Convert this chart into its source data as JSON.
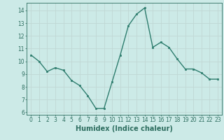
{
  "x": [
    0,
    1,
    2,
    3,
    4,
    5,
    6,
    7,
    8,
    9,
    10,
    11,
    12,
    13,
    14,
    15,
    16,
    17,
    18,
    19,
    20,
    21,
    22,
    23
  ],
  "y": [
    10.5,
    10.0,
    9.2,
    9.5,
    9.3,
    8.5,
    8.1,
    7.3,
    6.3,
    6.3,
    8.4,
    10.5,
    12.8,
    13.7,
    14.2,
    11.1,
    11.5,
    11.1,
    10.2,
    9.4,
    9.4,
    9.1,
    8.6,
    8.6
  ],
  "line_color": "#2e7d6e",
  "marker": "s",
  "markersize": 2.0,
  "linewidth": 1.0,
  "bg_color": "#cceae7",
  "grid_color": "#c0d8d4",
  "xlabel": "Humidex (Indice chaleur)",
  "ylim": [
    5.8,
    14.6
  ],
  "xlim": [
    -0.5,
    23.5
  ],
  "yticks": [
    6,
    7,
    8,
    9,
    10,
    11,
    12,
    13,
    14
  ],
  "xticks": [
    0,
    1,
    2,
    3,
    4,
    5,
    6,
    7,
    8,
    9,
    10,
    11,
    12,
    13,
    14,
    15,
    16,
    17,
    18,
    19,
    20,
    21,
    22,
    23
  ],
  "xlabel_fontsize": 7,
  "tick_fontsize": 5.5,
  "tick_color": "#2e6e60"
}
